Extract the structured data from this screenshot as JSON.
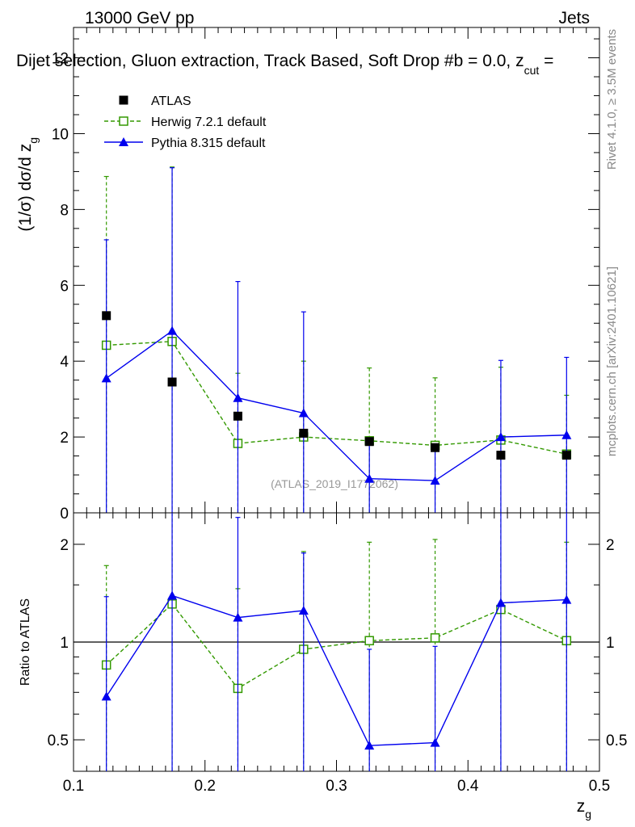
{
  "header": {
    "left_label": "13000 GeV pp",
    "right_label": "Jets",
    "title": "Dijet selection, Gluon extraction, Track Based, Soft Drop #b = 0.0, z",
    "title_sub": "cut",
    "title_tail": " ="
  },
  "side_labels": {
    "rivet": "Rivet 4.1.0, ≥ 3.5M events",
    "mcplots": "mcplots.cern.ch [arXiv:2401.10621]"
  },
  "watermark": "(ATLAS_2019_I1772062)",
  "colors": {
    "atlas": "#000000",
    "herwig": "#339900",
    "pythia": "#0000ee"
  },
  "chart_data": [
    {
      "type": "scatter",
      "panel": "main",
      "ylabel_main": "(1/σ) dσ/d z",
      "ylabel_sub": "g",
      "ylim": [
        0,
        12.8
      ],
      "yticks": [
        0,
        2,
        4,
        6,
        8,
        10,
        12
      ],
      "ytick_labels": [
        "0",
        "2",
        "4",
        "6",
        "8",
        "10",
        "12"
      ],
      "xlim": [
        0.1,
        0.5
      ],
      "x": [
        0.125,
        0.175,
        0.225,
        0.275,
        0.325,
        0.375,
        0.425,
        0.475
      ],
      "legend": [
        {
          "key": "atlas",
          "label": "ATLAS"
        },
        {
          "key": "herwig",
          "label": "Herwig 7.2.1 default"
        },
        {
          "key": "pythia",
          "label": "Pythia 8.315 default"
        }
      ],
      "series": [
        {
          "key": "atlas",
          "name": "ATLAS",
          "values": [
            5.2,
            3.45,
            2.55,
            2.1,
            1.88,
            1.72,
            1.52,
            1.52
          ],
          "err_up": [
            0,
            0,
            0,
            0,
            0,
            0,
            0,
            0
          ],
          "err_down": [
            0,
            0,
            0,
            0,
            0,
            0,
            0,
            0
          ]
        },
        {
          "key": "herwig",
          "name": "Herwig 7.2.1 default",
          "values": [
            4.42,
            4.52,
            1.83,
            2.0,
            1.9,
            1.78,
            1.92,
            1.55
          ],
          "err_up": [
            4.45,
            4.6,
            1.85,
            2.0,
            1.92,
            1.78,
            1.92,
            1.55
          ],
          "err_down": [
            4.42,
            4.52,
            1.83,
            2.0,
            1.9,
            1.78,
            1.92,
            1.55
          ]
        },
        {
          "key": "pythia",
          "name": "Pythia 8.315 default",
          "values": [
            3.55,
            4.8,
            3.03,
            2.63,
            0.9,
            0.85,
            2.0,
            2.05
          ],
          "err_up": [
            3.65,
            4.3,
            3.07,
            2.67,
            0.9,
            0.85,
            2.02,
            2.05
          ],
          "err_down": [
            3.55,
            4.8,
            3.03,
            2.63,
            0.9,
            0.85,
            2.0,
            2.05
          ]
        }
      ]
    },
    {
      "type": "scatter",
      "panel": "ratio",
      "ylabel": "Ratio to ATLAS",
      "yscale": "log",
      "ylim": [
        0.4,
        2.5
      ],
      "yticks": [
        0.5,
        1,
        2
      ],
      "ytick_labels": [
        "0.5",
        "1",
        "2"
      ],
      "reference": 1,
      "xlabel_main": "z",
      "xlabel_sub": "g",
      "xlim": [
        0.1,
        0.5
      ],
      "xticks": [
        0.1,
        0.2,
        0.3,
        0.4,
        0.5
      ],
      "xtick_labels": [
        "0.1",
        "0.2",
        "0.3",
        "0.4",
        "0.5"
      ],
      "x": [
        0.125,
        0.175,
        0.225,
        0.275,
        0.325,
        0.375,
        0.425,
        0.475
      ],
      "series": [
        {
          "key": "herwig",
          "name": "Herwig 7.2.1 default",
          "values": [
            0.85,
            1.31,
            0.72,
            0.95,
            1.01,
            1.03,
            1.26,
            1.01
          ],
          "err_top": [
            1.72,
            2.6,
            1.46,
            1.9,
            2.03,
            2.07,
            2.6,
            2.03
          ],
          "err_bottom": [
            0.3,
            0.3,
            0.3,
            0.3,
            0.3,
            0.3,
            0.3,
            0.3
          ]
        },
        {
          "key": "pythia",
          "name": "Pythia 8.315 default",
          "values": [
            0.68,
            1.39,
            1.19,
            1.25,
            0.48,
            0.49,
            1.32,
            1.35
          ],
          "err_top": [
            1.38,
            2.6,
            2.42,
            1.88,
            0.95,
            0.97,
            2.6,
            2.6
          ],
          "err_bottom": [
            0.3,
            0.3,
            0.3,
            0.3,
            0.3,
            0.3,
            0.3,
            0.3
          ]
        }
      ]
    }
  ]
}
